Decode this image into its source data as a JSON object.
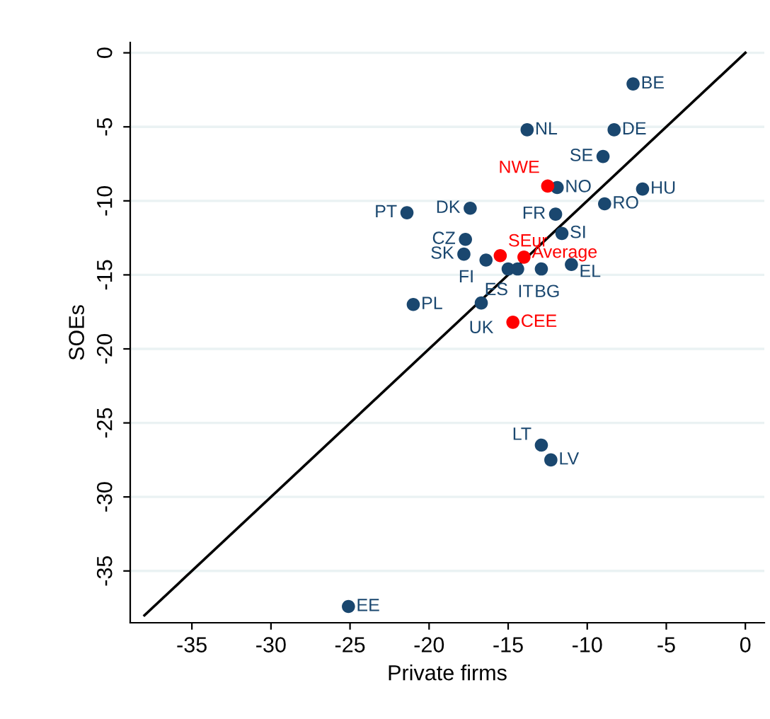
{
  "chart_data": {
    "type": "scatter",
    "xlabel": "Private firms",
    "ylabel": "SOEs",
    "xlim": [
      -38.9,
      1.2
    ],
    "ylim": [
      -38.5,
      0.7
    ],
    "xticks": [
      -35,
      -30,
      -25,
      -20,
      -15,
      -10,
      -5,
      0
    ],
    "yticks": [
      -35,
      -30,
      -25,
      -20,
      -15,
      -10,
      -5,
      0
    ],
    "grid": "y",
    "marker": "circle",
    "legend": false,
    "series": [
      {
        "color": "#1a476f",
        "x": [
          -7.1,
          -13.8,
          -8.3,
          -9.0,
          -11.9,
          -6.5,
          -8.9,
          -21.4,
          -17.4,
          -12.0,
          -17.7,
          -11.6,
          -17.8,
          -16.4,
          -15.0,
          -14.4,
          -12.9,
          -11.0,
          -21.0,
          -16.7,
          -12.9,
          -12.3,
          -25.1
        ],
        "values": [
          -2.1,
          -5.2,
          -5.2,
          -7.0,
          -9.1,
          -9.2,
          -10.2,
          -10.8,
          -10.5,
          -10.9,
          -12.6,
          -12.2,
          -13.6,
          -14.0,
          -14.6,
          -14.6,
          -14.6,
          -14.3,
          -17.0,
          -16.9,
          -26.5,
          -27.5,
          -37.4
        ]
      },
      {
        "color": "#ff0000",
        "x": [
          -12.5,
          -15.5,
          -14.0,
          -14.7
        ],
        "values": [
          -9.0,
          -13.7,
          -13.8,
          -18.2
        ]
      },
      {
        "type": "line",
        "marker": "none",
        "color": "#000000",
        "x": [
          -38,
          0
        ],
        "values": [
          -38,
          0
        ]
      }
    ],
    "annotations": [
      {
        "text": "BE",
        "x": -7.1,
        "y": -2.1
      },
      {
        "text": "NL",
        "x": -13.8,
        "y": -5.2
      },
      {
        "text": "DE",
        "x": -8.3,
        "y": -5.2
      },
      {
        "text": "SE",
        "x": -9.0,
        "y": -7.0
      },
      {
        "text": "NO",
        "x": -11.9,
        "y": -9.1
      },
      {
        "text": "HU",
        "x": -6.5,
        "y": -9.2
      },
      {
        "text": "RO",
        "x": -8.9,
        "y": -10.2
      },
      {
        "text": "PT",
        "x": -21.4,
        "y": -10.8
      },
      {
        "text": "DK",
        "x": -17.4,
        "y": -10.5
      },
      {
        "text": "FR",
        "x": -12.0,
        "y": -10.9
      },
      {
        "text": "CZ",
        "x": -17.7,
        "y": -12.6
      },
      {
        "text": "SI",
        "x": -11.6,
        "y": -12.2
      },
      {
        "text": "SK",
        "x": -17.8,
        "y": -13.6
      },
      {
        "text": "FI",
        "x": -16.4,
        "y": -14.0
      },
      {
        "text": "ES",
        "x": -15.0,
        "y": -14.6
      },
      {
        "text": "IT",
        "x": -14.4,
        "y": -14.6
      },
      {
        "text": "BG",
        "x": -12.9,
        "y": -14.6
      },
      {
        "text": "EL",
        "x": -11.0,
        "y": -14.3
      },
      {
        "text": "PL",
        "x": -21.0,
        "y": -17.0
      },
      {
        "text": "UK",
        "x": -16.7,
        "y": -16.9
      },
      {
        "text": "LT",
        "x": -12.9,
        "y": -26.5
      },
      {
        "text": "LV",
        "x": -12.3,
        "y": -27.5
      },
      {
        "text": "EE",
        "x": -25.1,
        "y": -37.4
      },
      {
        "text": "NWE",
        "x": -12.5,
        "y": -9.0
      },
      {
        "text": "SEur",
        "x": -15.5,
        "y": -13.7
      },
      {
        "text": "Average",
        "x": -14.0,
        "y": -13.8
      },
      {
        "text": "CEE",
        "x": -14.7,
        "y": -18.2
      }
    ]
  }
}
